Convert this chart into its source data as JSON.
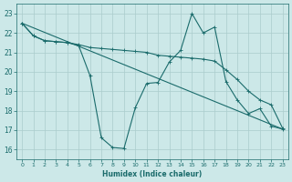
{
  "background_color": "#cce8e8",
  "grid_color": "#aacccc",
  "line_color": "#1a6b6b",
  "xlabel": "Humidex (Indice chaleur)",
  "ylim": [
    15.5,
    23.5
  ],
  "xlim": [
    -0.5,
    23.5
  ],
  "yticks": [
    16,
    17,
    18,
    19,
    20,
    21,
    22,
    23
  ],
  "xticks": [
    0,
    1,
    2,
    3,
    4,
    5,
    6,
    7,
    8,
    9,
    10,
    11,
    12,
    13,
    14,
    15,
    16,
    17,
    18,
    19,
    20,
    21,
    22,
    23
  ],
  "series1_x": [
    0,
    1,
    2,
    3,
    4,
    5,
    6,
    7,
    8,
    9,
    10,
    11,
    12,
    13,
    14,
    15,
    16,
    17,
    18,
    19,
    20,
    21,
    22,
    23
  ],
  "series1_y": [
    22.5,
    21.85,
    21.6,
    21.55,
    21.5,
    21.4,
    21.25,
    21.2,
    21.15,
    21.1,
    21.05,
    21.0,
    20.85,
    20.8,
    20.75,
    20.7,
    20.65,
    20.55,
    20.1,
    19.6,
    19.0,
    18.55,
    18.3,
    17.1
  ],
  "series2_x": [
    0,
    1,
    2,
    3,
    4,
    5,
    6,
    7,
    8,
    9,
    10,
    11,
    12,
    13,
    14,
    15,
    16,
    17,
    18,
    19,
    20,
    21,
    22,
    23
  ],
  "series2_y": [
    22.5,
    21.85,
    21.6,
    21.55,
    21.5,
    21.35,
    19.8,
    16.6,
    16.1,
    16.05,
    18.15,
    19.4,
    19.45,
    20.5,
    21.1,
    23.0,
    22.0,
    22.3,
    19.5,
    18.55,
    17.85,
    18.1,
    17.2,
    17.05
  ],
  "series3_x": [
    0,
    23
  ],
  "series3_y": [
    22.5,
    17.05
  ]
}
